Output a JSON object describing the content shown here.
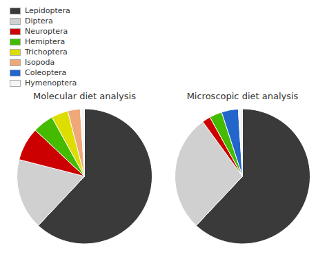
{
  "chart_data": [
    {
      "type": "pie",
      "title": "Molecular diet analysis",
      "categories": [
        "Lepidoptera",
        "Diptera",
        "Neuroptera",
        "Hemiptera",
        "Trichoptera",
        "Isopoda",
        "Coleoptera",
        "Hymenoptera"
      ],
      "values": [
        62,
        17,
        8,
        5,
        4,
        3,
        0,
        1
      ],
      "colors": [
        "#3a3a3a",
        "#d0d0d0",
        "#cc0000",
        "#44bb00",
        "#dddd00",
        "#f0a878",
        "#2266cc",
        "#f5f5f5"
      ],
      "legend": "upper left"
    },
    {
      "type": "pie",
      "title": "Microscopic diet analysis",
      "categories": [
        "Lepidoptera",
        "Diptera",
        "Neuroptera",
        "Hemiptera",
        "Trichoptera",
        "Isopoda",
        "Coleoptera",
        "Hymenoptera"
      ],
      "values": [
        62,
        28,
        2,
        3,
        0,
        0,
        4,
        1
      ],
      "colors": [
        "#3a3a3a",
        "#d0d0d0",
        "#cc0000",
        "#44bb00",
        "#dddd00",
        "#f0a878",
        "#2266cc",
        "#f5f5f5"
      ]
    }
  ]
}
